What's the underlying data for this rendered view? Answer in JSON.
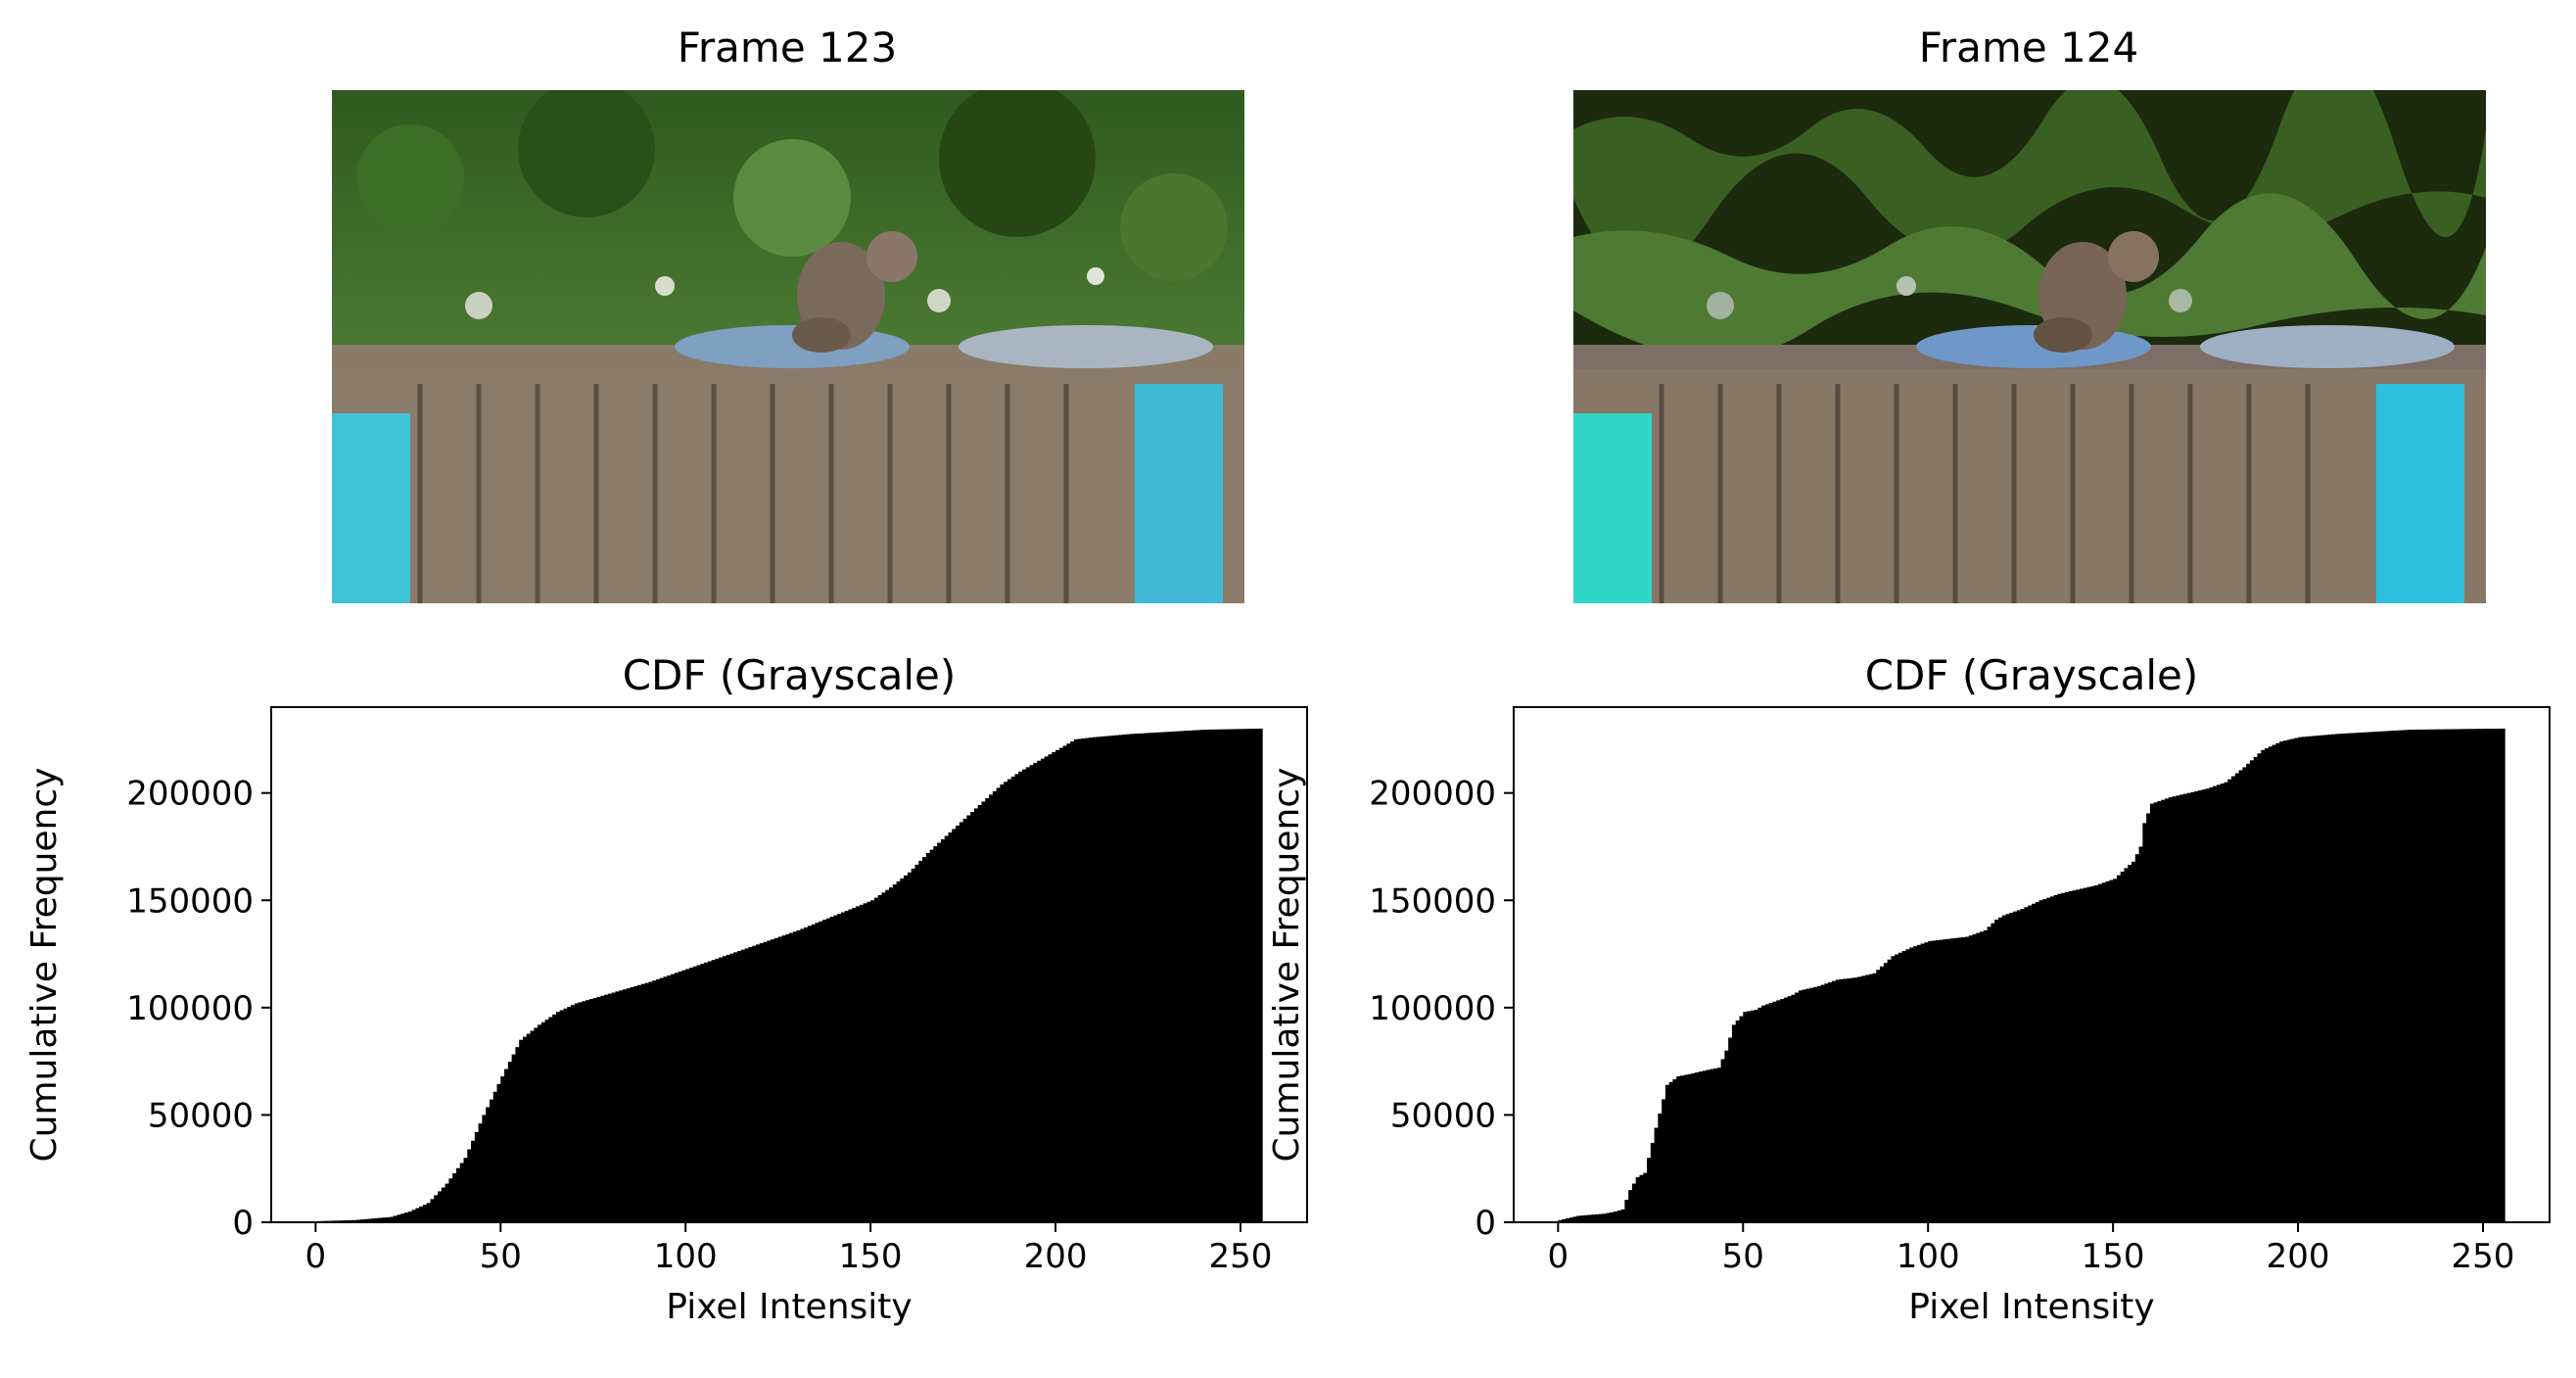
{
  "frames": [
    {
      "title": "Frame 123",
      "image": "squirrel-on-recycling-bins-photo"
    },
    {
      "title": "Frame 124",
      "image": "squirrel-on-recycling-bins-posterized-photo"
    }
  ],
  "chart_data": [
    {
      "type": "area",
      "title": "CDF (Grayscale)",
      "xlabel": "Pixel Intensity",
      "ylabel": "Cumulative Frequency",
      "xlim": [
        -12,
        268
      ],
      "ylim": [
        0,
        240000
      ],
      "xticks": [
        0,
        50,
        100,
        150,
        200,
        250
      ],
      "yticks": [
        0,
        50000,
        100000,
        150000,
        200000
      ],
      "x": [
        0,
        10,
        20,
        25,
        30,
        35,
        40,
        45,
        50,
        55,
        60,
        65,
        70,
        80,
        90,
        100,
        110,
        120,
        130,
        140,
        150,
        155,
        160,
        165,
        170,
        175,
        180,
        185,
        190,
        195,
        200,
        205,
        210,
        220,
        230,
        240,
        255
      ],
      "values": [
        500,
        1000,
        2500,
        5000,
        9000,
        18000,
        30000,
        50000,
        68000,
        85000,
        92000,
        98000,
        102000,
        107000,
        112000,
        118000,
        124000,
        130000,
        136000,
        143000,
        150000,
        156000,
        163000,
        172000,
        180000,
        188000,
        196000,
        204000,
        210000,
        215000,
        220000,
        225000,
        226000,
        227500,
        228500,
        229500,
        230000
      ]
    },
    {
      "type": "area",
      "title": "CDF (Grayscale)",
      "xlabel": "Pixel Intensity",
      "ylabel": "Cumulative Frequency",
      "xlim": [
        -12,
        268
      ],
      "ylim": [
        0,
        240000
      ],
      "xticks": [
        0,
        50,
        100,
        150,
        200,
        250
      ],
      "yticks": [
        0,
        50000,
        100000,
        150000,
        200000
      ],
      "x": [
        0,
        5,
        12,
        15,
        17,
        19,
        21,
        23,
        26,
        29,
        32,
        35,
        40,
        43,
        45,
        47,
        50,
        53,
        55,
        60,
        63,
        65,
        70,
        75,
        80,
        85,
        90,
        95,
        100,
        105,
        110,
        115,
        118,
        120,
        125,
        130,
        135,
        140,
        145,
        150,
        153,
        155,
        157,
        158,
        160,
        165,
        170,
        175,
        180,
        185,
        190,
        195,
        200,
        210,
        220,
        230,
        255
      ],
      "values": [
        1000,
        3000,
        4000,
        5000,
        6000,
        15000,
        21000,
        23000,
        44000,
        64000,
        68000,
        69000,
        71000,
        72000,
        80000,
        92000,
        98000,
        99000,
        101000,
        104000,
        106000,
        108000,
        110000,
        113000,
        114000,
        116000,
        124000,
        128000,
        131000,
        132000,
        133000,
        136000,
        141000,
        143000,
        146000,
        150000,
        153000,
        155000,
        157000,
        160000,
        165000,
        168000,
        175000,
        186000,
        195000,
        198000,
        200000,
        202000,
        205000,
        212000,
        220000,
        224000,
        226000,
        227500,
        228500,
        229500,
        230000
      ]
    }
  ]
}
